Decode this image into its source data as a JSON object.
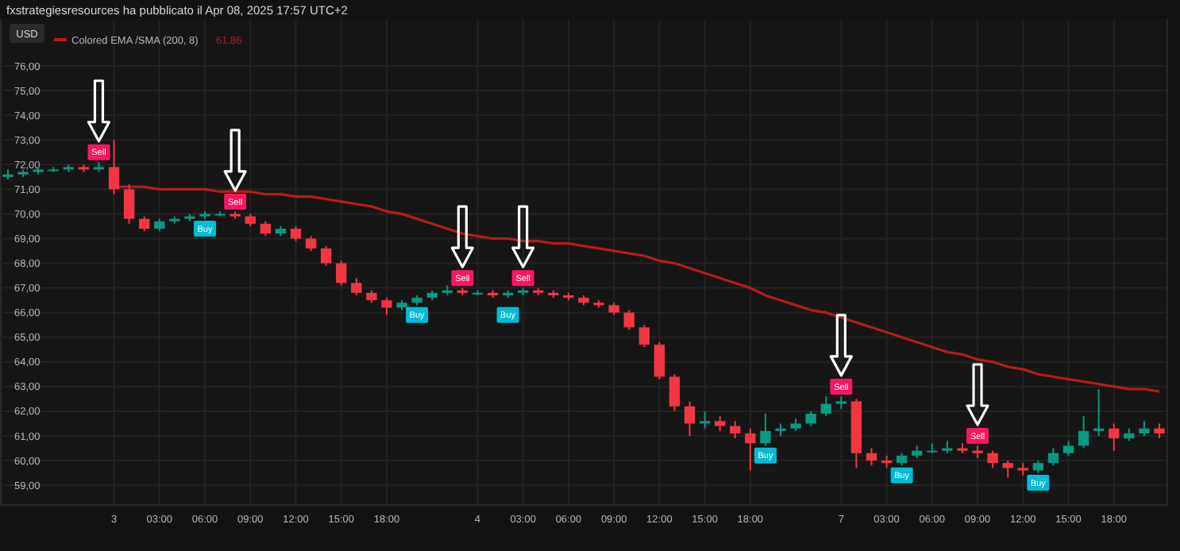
{
  "chart_data": {
    "type": "candlestick",
    "title": "fxstrategiesresources ha pubblicato il Apr 08, 2025 17:57 UTC+2",
    "categories": [
      null,
      null,
      null,
      null,
      null,
      null,
      null,
      "3",
      null,
      null,
      "03:00",
      null,
      null,
      "06:00",
      null,
      null,
      "09:00",
      null,
      null,
      "12:00",
      null,
      null,
      "15:00",
      null,
      null,
      "18:00",
      null,
      null,
      null,
      null,
      null,
      "4",
      null,
      null,
      "03:00",
      null,
      null,
      "06:00",
      null,
      null,
      "09:00",
      null,
      null,
      "12:00",
      null,
      null,
      "15:00",
      null,
      null,
      "18:00",
      null,
      null,
      null,
      null,
      null,
      "7",
      null,
      null,
      "03:00",
      null,
      null,
      "06:00",
      null,
      null,
      "09:00",
      null,
      null,
      "12:00",
      null,
      null,
      "15:00",
      null,
      null,
      "18:00",
      null,
      null,
      null
    ],
    "ohlc": [
      [
        71.5,
        71.8,
        71.4,
        71.6
      ],
      [
        71.6,
        71.8,
        71.5,
        71.7
      ],
      [
        71.7,
        71.9,
        71.6,
        71.8
      ],
      [
        71.8,
        71.9,
        71.7,
        71.8
      ],
      [
        71.8,
        72.0,
        71.7,
        71.9
      ],
      [
        71.9,
        72.0,
        71.7,
        71.8
      ],
      [
        71.8,
        72.1,
        71.7,
        71.9
      ],
      [
        71.9,
        73.0,
        70.8,
        71.0
      ],
      [
        71.0,
        71.2,
        69.6,
        69.8
      ],
      [
        69.8,
        69.9,
        69.3,
        69.4
      ],
      [
        69.4,
        69.8,
        69.3,
        69.7
      ],
      [
        69.7,
        69.9,
        69.6,
        69.8
      ],
      [
        69.8,
        70.0,
        69.7,
        69.9
      ],
      [
        69.9,
        70.1,
        69.8,
        70.0
      ],
      [
        70.0,
        70.1,
        69.9,
        70.0
      ],
      [
        70.0,
        70.1,
        69.8,
        69.9
      ],
      [
        69.9,
        70.0,
        69.5,
        69.6
      ],
      [
        69.6,
        69.7,
        69.1,
        69.2
      ],
      [
        69.2,
        69.5,
        69.1,
        69.4
      ],
      [
        69.4,
        69.5,
        68.9,
        69.0
      ],
      [
        69.0,
        69.1,
        68.5,
        68.6
      ],
      [
        68.6,
        68.7,
        67.9,
        68.0
      ],
      [
        68.0,
        68.1,
        67.1,
        67.2
      ],
      [
        67.2,
        67.4,
        66.7,
        66.8
      ],
      [
        66.8,
        66.9,
        66.4,
        66.5
      ],
      [
        66.5,
        66.6,
        65.9,
        66.2
      ],
      [
        66.2,
        66.5,
        66.1,
        66.4
      ],
      [
        66.4,
        66.7,
        66.3,
        66.6
      ],
      [
        66.6,
        66.9,
        66.5,
        66.8
      ],
      [
        66.8,
        67.1,
        66.7,
        66.9
      ],
      [
        66.9,
        67.0,
        66.7,
        66.8
      ],
      [
        66.8,
        66.9,
        66.7,
        66.8
      ],
      [
        66.8,
        66.9,
        66.6,
        66.7
      ],
      [
        66.7,
        66.9,
        66.6,
        66.8
      ],
      [
        66.8,
        67.0,
        66.7,
        66.9
      ],
      [
        66.9,
        67.0,
        66.7,
        66.8
      ],
      [
        66.8,
        66.9,
        66.6,
        66.7
      ],
      [
        66.7,
        66.8,
        66.5,
        66.6
      ],
      [
        66.6,
        66.7,
        66.3,
        66.4
      ],
      [
        66.4,
        66.5,
        66.2,
        66.3
      ],
      [
        66.3,
        66.4,
        65.9,
        66.0
      ],
      [
        66.0,
        66.1,
        65.3,
        65.4
      ],
      [
        65.4,
        65.5,
        64.6,
        64.7
      ],
      [
        64.7,
        64.8,
        63.3,
        63.4
      ],
      [
        63.4,
        63.5,
        62.0,
        62.2
      ],
      [
        62.2,
        62.4,
        61.0,
        61.5
      ],
      [
        61.5,
        62.0,
        61.3,
        61.6
      ],
      [
        61.6,
        61.8,
        61.2,
        61.4
      ],
      [
        61.4,
        61.6,
        60.9,
        61.1
      ],
      [
        61.1,
        61.3,
        59.6,
        60.7
      ],
      [
        60.7,
        61.9,
        60.6,
        61.2
      ],
      [
        61.2,
        61.5,
        61.0,
        61.3
      ],
      [
        61.3,
        61.7,
        61.2,
        61.5
      ],
      [
        61.5,
        62.0,
        61.4,
        61.9
      ],
      [
        61.9,
        62.6,
        61.8,
        62.3
      ],
      [
        62.3,
        62.6,
        62.1,
        62.4
      ],
      [
        62.4,
        62.5,
        59.7,
        60.3
      ],
      [
        60.3,
        60.5,
        59.8,
        60.0
      ],
      [
        60.0,
        60.2,
        59.7,
        59.9
      ],
      [
        59.9,
        60.3,
        59.8,
        60.2
      ],
      [
        60.2,
        60.6,
        60.1,
        60.4
      ],
      [
        60.4,
        60.7,
        60.3,
        60.4
      ],
      [
        60.4,
        60.8,
        60.3,
        60.5
      ],
      [
        60.5,
        60.7,
        60.3,
        60.4
      ],
      [
        60.4,
        60.6,
        60.1,
        60.3
      ],
      [
        60.3,
        60.4,
        59.7,
        59.9
      ],
      [
        59.9,
        60.0,
        59.3,
        59.7
      ],
      [
        59.7,
        59.9,
        59.4,
        59.6
      ],
      [
        59.6,
        60.0,
        59.5,
        59.9
      ],
      [
        59.9,
        60.5,
        59.8,
        60.3
      ],
      [
        60.3,
        60.8,
        60.2,
        60.6
      ],
      [
        60.6,
        61.8,
        60.5,
        61.2
      ],
      [
        61.2,
        62.9,
        61.0,
        61.3
      ],
      [
        61.3,
        61.5,
        60.4,
        60.9
      ],
      [
        60.9,
        61.3,
        60.8,
        61.1
      ],
      [
        61.1,
        61.6,
        61.0,
        61.3
      ],
      [
        61.3,
        61.5,
        60.9,
        61.1
      ]
    ],
    "colors": [
      "#089981",
      "#089981",
      "#089981",
      "#089981",
      "#089981",
      "#f23645",
      "#089981",
      "#f23645",
      "#f23645",
      "#f23645",
      "#089981",
      "#089981",
      "#089981",
      "#089981",
      "#089981",
      "#f23645",
      "#f23645",
      "#f23645",
      "#089981",
      "#f23645",
      "#f23645",
      "#f23645",
      "#f23645",
      "#f23645",
      "#f23645",
      "#f23645",
      "#089981",
      "#089981",
      "#089981",
      "#089981",
      "#f23645",
      "#089981",
      "#f23645",
      "#089981",
      "#089981",
      "#f23645",
      "#f23645",
      "#f23645",
      "#f23645",
      "#f23645",
      "#f23645",
      "#f23645",
      "#f23645",
      "#f23645",
      "#f23645",
      "#f23645",
      "#089981",
      "#f23645",
      "#f23645",
      "#f23645",
      "#089981",
      "#089981",
      "#089981",
      "#089981",
      "#089981",
      "#089981",
      "#f23645",
      "#f23645",
      "#f23645",
      "#089981",
      "#089981",
      "#089981",
      "#089981",
      "#f23645",
      "#f23645",
      "#f23645",
      "#f23645",
      "#f23645",
      "#089981",
      "#089981",
      "#089981",
      "#089981",
      "#089981",
      "#f23645",
      "#089981",
      "#089981",
      "#f23645"
    ],
    "series": [
      {
        "type": "line",
        "name": "Colored EMA /SMA (200, 8)",
        "color": "#b71c1c",
        "values": [
          null,
          null,
          null,
          null,
          null,
          null,
          null,
          71.1,
          71.1,
          71.1,
          71.0,
          71.0,
          71.0,
          71.0,
          70.9,
          70.9,
          70.9,
          70.8,
          70.8,
          70.7,
          70.7,
          70.6,
          70.5,
          70.4,
          70.3,
          70.1,
          70.0,
          69.8,
          69.6,
          69.4,
          69.2,
          69.1,
          69.0,
          69.0,
          68.9,
          68.9,
          68.8,
          68.8,
          68.7,
          68.6,
          68.5,
          68.4,
          68.3,
          68.1,
          68.0,
          67.8,
          67.6,
          67.4,
          67.2,
          67.0,
          66.7,
          66.5,
          66.3,
          66.1,
          66.0,
          65.8,
          65.6,
          65.4,
          65.2,
          65.0,
          64.8,
          64.6,
          64.4,
          64.3,
          64.1,
          64.0,
          63.8,
          63.7,
          63.5,
          63.4,
          63.3,
          63.2,
          63.1,
          63.0,
          62.9,
          62.9,
          62.8
        ]
      },
      {
        "type": "scatter",
        "name": "Sell",
        "color": "#f7185f",
        "values": [
          null,
          null,
          null,
          null,
          null,
          null,
          72.5,
          null,
          null,
          null,
          null,
          null,
          null,
          null,
          null,
          70.5,
          null,
          null,
          null,
          null,
          null,
          null,
          null,
          null,
          null,
          null,
          null,
          null,
          null,
          null,
          67.4,
          null,
          null,
          null,
          67.4,
          null,
          null,
          null,
          null,
          null,
          null,
          null,
          null,
          null,
          null,
          null,
          null,
          null,
          null,
          null,
          null,
          null,
          null,
          null,
          null,
          63.0,
          null,
          null,
          null,
          null,
          null,
          null,
          null,
          null,
          61.0,
          null,
          null,
          null,
          null,
          null,
          null,
          null,
          null,
          null,
          null,
          null,
          null
        ]
      },
      {
        "type": "scatter",
        "name": "Buy",
        "color": "#00bcd4",
        "values": [
          null,
          null,
          null,
          null,
          null,
          null,
          null,
          null,
          null,
          null,
          null,
          null,
          null,
          69.4,
          null,
          null,
          null,
          null,
          null,
          null,
          null,
          null,
          null,
          null,
          null,
          null,
          null,
          65.9,
          null,
          null,
          null,
          null,
          null,
          65.9,
          null,
          null,
          null,
          null,
          null,
          null,
          null,
          null,
          null,
          null,
          null,
          null,
          null,
          null,
          null,
          null,
          60.2,
          null,
          null,
          null,
          null,
          null,
          null,
          null,
          null,
          59.4,
          null,
          null,
          null,
          null,
          null,
          null,
          null,
          null,
          59.1,
          null,
          null,
          null,
          null,
          null,
          null,
          null,
          null
        ]
      }
    ],
    "ylim": [
      58.2,
      77.9
    ],
    "yticks": [
      {
        "value": 59,
        "label": "59,00"
      },
      {
        "value": 60,
        "label": "60,00"
      },
      {
        "value": 61,
        "label": "61,00"
      },
      {
        "value": 62,
        "label": "62,00"
      },
      {
        "value": 63,
        "label": "63,00"
      },
      {
        "value": 64,
        "label": "64,00"
      },
      {
        "value": 65,
        "label": "65,00"
      },
      {
        "value": 66,
        "label": "66,00"
      },
      {
        "value": 67,
        "label": "67,00"
      },
      {
        "value": 68,
        "label": "68,00"
      },
      {
        "value": 69,
        "label": "69,00"
      },
      {
        "value": 70,
        "label": "70,00"
      },
      {
        "value": 71,
        "label": "71,00"
      },
      {
        "value": 72,
        "label": "72,00"
      },
      {
        "value": 73,
        "label": "73,00"
      },
      {
        "value": 74,
        "label": "74,00"
      },
      {
        "value": 75,
        "label": "75,00"
      },
      {
        "value": 76,
        "label": "76,00"
      }
    ],
    "grid": true,
    "legend": "top left",
    "annotations": [
      "USD",
      "61,86"
    ]
  }
}
